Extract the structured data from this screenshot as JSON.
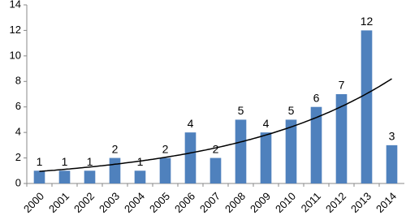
{
  "chart_data": {
    "type": "bar",
    "categories": [
      "2000",
      "2001",
      "2002",
      "2003",
      "2004",
      "2005",
      "2006",
      "2007",
      "2008",
      "2009",
      "2010",
      "2011",
      "2012",
      "2013",
      "2014"
    ],
    "values": [
      1,
      1,
      1,
      2,
      1,
      2,
      4,
      2,
      5,
      4,
      5,
      6,
      7,
      12,
      3
    ],
    "color": "#4f81bd",
    "ylim": [
      0,
      14
    ],
    "yticks": [
      0,
      2,
      4,
      6,
      8,
      10,
      12,
      14
    ],
    "grid": false,
    "trendline": "exponential",
    "trendline_color": "#000000"
  }
}
